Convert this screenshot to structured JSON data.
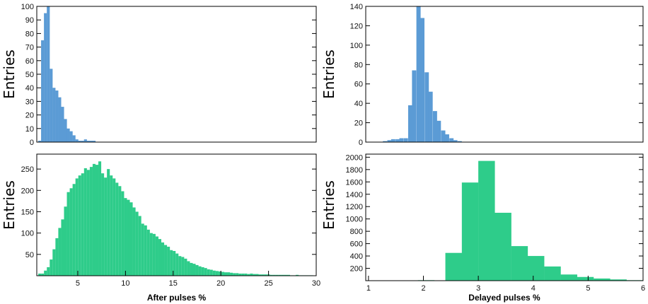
{
  "chart_data": [
    {
      "type": "bar",
      "id": "afterpulse-hist-a",
      "title": "",
      "xlabel": "",
      "ylabel": "Entries",
      "xlim": [
        0.7,
        30
      ],
      "ylim": [
        0,
        100
      ],
      "x_ticks": [],
      "y_ticks": [
        0,
        10,
        20,
        30,
        40,
        50,
        60,
        70,
        80,
        90,
        100
      ],
      "bin_width": 0.3,
      "color": "#5b9bd5",
      "bins": [
        {
          "x": 1.0,
          "y": 1
        },
        {
          "x": 1.3,
          "y": 75
        },
        {
          "x": 1.6,
          "y": 95
        },
        {
          "x": 1.9,
          "y": 100
        },
        {
          "x": 2.2,
          "y": 54
        },
        {
          "x": 2.5,
          "y": 40
        },
        {
          "x": 2.8,
          "y": 38
        },
        {
          "x": 3.1,
          "y": 33
        },
        {
          "x": 3.4,
          "y": 26
        },
        {
          "x": 3.7,
          "y": 17
        },
        {
          "x": 4.0,
          "y": 10
        },
        {
          "x": 4.3,
          "y": 8
        },
        {
          "x": 4.6,
          "y": 5
        },
        {
          "x": 4.9,
          "y": 2
        },
        {
          "x": 5.2,
          "y": 1
        },
        {
          "x": 5.5,
          "y": 1
        },
        {
          "x": 5.8,
          "y": 2
        },
        {
          "x": 6.1,
          "y": 1
        },
        {
          "x": 6.4,
          "y": 1
        },
        {
          "x": 6.7,
          "y": 1
        }
      ]
    },
    {
      "type": "bar",
      "id": "delayed-hist-a",
      "title": "",
      "xlabel": "",
      "ylabel": "Entries",
      "xlim": [
        0.95,
        6
      ],
      "ylim": [
        0,
        140
      ],
      "x_ticks": [],
      "y_ticks": [
        0,
        20,
        40,
        60,
        80,
        100,
        120,
        140
      ],
      "bin_width": 0.075,
      "color": "#5b9bd5",
      "bins": [
        {
          "x": 1.3,
          "y": 1
        },
        {
          "x": 1.38,
          "y": 2
        },
        {
          "x": 1.45,
          "y": 3
        },
        {
          "x": 1.53,
          "y": 3
        },
        {
          "x": 1.6,
          "y": 4
        },
        {
          "x": 1.68,
          "y": 4
        },
        {
          "x": 1.76,
          "y": 38
        },
        {
          "x": 1.83,
          "y": 74
        },
        {
          "x": 1.91,
          "y": 140
        },
        {
          "x": 1.98,
          "y": 128
        },
        {
          "x": 2.06,
          "y": 72
        },
        {
          "x": 2.13,
          "y": 52
        },
        {
          "x": 2.21,
          "y": 32
        },
        {
          "x": 2.28,
          "y": 22
        },
        {
          "x": 2.36,
          "y": 12
        },
        {
          "x": 2.43,
          "y": 8
        },
        {
          "x": 2.51,
          "y": 4
        },
        {
          "x": 2.58,
          "y": 2
        },
        {
          "x": 2.66,
          "y": 1
        }
      ]
    },
    {
      "type": "bar",
      "id": "afterpulse-hist-b",
      "title": "",
      "xlabel": "After pulses %",
      "ylabel": "Entries",
      "xlim": [
        0.7,
        30
      ],
      "ylim": [
        0,
        285
      ],
      "x_ticks": [
        5,
        10,
        15,
        20,
        25,
        30
      ],
      "y_ticks": [
        50,
        100,
        150,
        200,
        250
      ],
      "bin_width": 0.29,
      "color": "#2ecc8a",
      "bins": [
        {
          "x": 1.0,
          "y": 5
        },
        {
          "x": 1.3,
          "y": 5
        },
        {
          "x": 1.6,
          "y": 12
        },
        {
          "x": 1.9,
          "y": 20
        },
        {
          "x": 2.2,
          "y": 38
        },
        {
          "x": 2.5,
          "y": 62
        },
        {
          "x": 2.8,
          "y": 88
        },
        {
          "x": 3.1,
          "y": 112
        },
        {
          "x": 3.4,
          "y": 132
        },
        {
          "x": 3.7,
          "y": 162
        },
        {
          "x": 4.0,
          "y": 196
        },
        {
          "x": 4.3,
          "y": 205
        },
        {
          "x": 4.6,
          "y": 215
        },
        {
          "x": 4.9,
          "y": 228
        },
        {
          "x": 5.2,
          "y": 235
        },
        {
          "x": 5.5,
          "y": 240
        },
        {
          "x": 5.8,
          "y": 252
        },
        {
          "x": 6.1,
          "y": 248
        },
        {
          "x": 6.4,
          "y": 255
        },
        {
          "x": 6.7,
          "y": 262
        },
        {
          "x": 7.0,
          "y": 260
        },
        {
          "x": 7.3,
          "y": 268
        },
        {
          "x": 7.6,
          "y": 240
        },
        {
          "x": 7.9,
          "y": 230
        },
        {
          "x": 8.2,
          "y": 250
        },
        {
          "x": 8.5,
          "y": 235
        },
        {
          "x": 8.8,
          "y": 228
        },
        {
          "x": 9.1,
          "y": 218
        },
        {
          "x": 9.4,
          "y": 210
        },
        {
          "x": 9.7,
          "y": 198
        },
        {
          "x": 10.0,
          "y": 182
        },
        {
          "x": 10.3,
          "y": 178
        },
        {
          "x": 10.6,
          "y": 172
        },
        {
          "x": 10.9,
          "y": 160
        },
        {
          "x": 11.2,
          "y": 150
        },
        {
          "x": 11.5,
          "y": 140
        },
        {
          "x": 11.8,
          "y": 122
        },
        {
          "x": 12.1,
          "y": 118
        },
        {
          "x": 12.4,
          "y": 108
        },
        {
          "x": 12.7,
          "y": 100
        },
        {
          "x": 13.0,
          "y": 98
        },
        {
          "x": 13.3,
          "y": 92
        },
        {
          "x": 13.6,
          "y": 86
        },
        {
          "x": 13.9,
          "y": 78
        },
        {
          "x": 14.2,
          "y": 72
        },
        {
          "x": 14.5,
          "y": 68
        },
        {
          "x": 14.8,
          "y": 60
        },
        {
          "x": 15.1,
          "y": 58
        },
        {
          "x": 15.4,
          "y": 52
        },
        {
          "x": 15.7,
          "y": 46
        },
        {
          "x": 16.0,
          "y": 44
        },
        {
          "x": 16.3,
          "y": 40
        },
        {
          "x": 16.6,
          "y": 34
        },
        {
          "x": 16.9,
          "y": 30
        },
        {
          "x": 17.2,
          "y": 28
        },
        {
          "x": 17.5,
          "y": 25
        },
        {
          "x": 17.8,
          "y": 22
        },
        {
          "x": 18.1,
          "y": 20
        },
        {
          "x": 18.4,
          "y": 18
        },
        {
          "x": 18.7,
          "y": 15
        },
        {
          "x": 19.0,
          "y": 14
        },
        {
          "x": 19.3,
          "y": 12
        },
        {
          "x": 19.6,
          "y": 11
        },
        {
          "x": 19.9,
          "y": 10
        },
        {
          "x": 20.2,
          "y": 9
        },
        {
          "x": 20.5,
          "y": 8
        },
        {
          "x": 20.8,
          "y": 8
        },
        {
          "x": 21.1,
          "y": 7
        },
        {
          "x": 21.4,
          "y": 6
        },
        {
          "x": 21.7,
          "y": 6
        },
        {
          "x": 22.0,
          "y": 5
        },
        {
          "x": 22.3,
          "y": 5
        },
        {
          "x": 22.6,
          "y": 5
        },
        {
          "x": 22.9,
          "y": 4
        },
        {
          "x": 23.2,
          "y": 5
        },
        {
          "x": 23.5,
          "y": 4
        },
        {
          "x": 23.8,
          "y": 4
        },
        {
          "x": 24.1,
          "y": 3
        },
        {
          "x": 24.4,
          "y": 3
        },
        {
          "x": 24.7,
          "y": 3
        },
        {
          "x": 25.0,
          "y": 3
        },
        {
          "x": 25.3,
          "y": 2
        },
        {
          "x": 25.6,
          "y": 2
        },
        {
          "x": 25.9,
          "y": 2
        },
        {
          "x": 26.2,
          "y": 2
        },
        {
          "x": 26.5,
          "y": 2
        },
        {
          "x": 26.8,
          "y": 2
        },
        {
          "x": 27.1,
          "y": 2
        },
        {
          "x": 27.4,
          "y": 1
        },
        {
          "x": 27.7,
          "y": 1
        },
        {
          "x": 28.0,
          "y": 2
        },
        {
          "x": 28.3,
          "y": 1
        },
        {
          "x": 28.6,
          "y": 1
        },
        {
          "x": 28.9,
          "y": 1
        },
        {
          "x": 29.2,
          "y": 1
        },
        {
          "x": 29.5,
          "y": 1
        }
      ]
    },
    {
      "type": "bar",
      "id": "delayed-hist-b",
      "title": "",
      "xlabel": "Delayed pulses %",
      "ylabel": "Entries",
      "xlim": [
        0.95,
        6
      ],
      "ylim": [
        0,
        2050
      ],
      "x_ticks": [
        1,
        2,
        3,
        4,
        5,
        6
      ],
      "y_ticks": [
        200,
        400,
        600,
        800,
        1000,
        1200,
        1400,
        1600,
        1800,
        2000
      ],
      "bin_width": 0.3,
      "color": "#2ecc8a",
      "bins": [
        {
          "x": 1.15,
          "y": 5
        },
        {
          "x": 1.45,
          "y": 5
        },
        {
          "x": 1.75,
          "y": 5
        },
        {
          "x": 2.05,
          "y": 8
        },
        {
          "x": 2.55,
          "y": 450
        },
        {
          "x": 2.85,
          "y": 1590
        },
        {
          "x": 3.15,
          "y": 1940
        },
        {
          "x": 3.45,
          "y": 1100
        },
        {
          "x": 3.75,
          "y": 560
        },
        {
          "x": 4.05,
          "y": 400
        },
        {
          "x": 4.35,
          "y": 230
        },
        {
          "x": 4.65,
          "y": 100
        },
        {
          "x": 4.95,
          "y": 60
        },
        {
          "x": 5.25,
          "y": 35
        },
        {
          "x": 5.55,
          "y": 20
        },
        {
          "x": 5.85,
          "y": 8
        }
      ]
    }
  ]
}
